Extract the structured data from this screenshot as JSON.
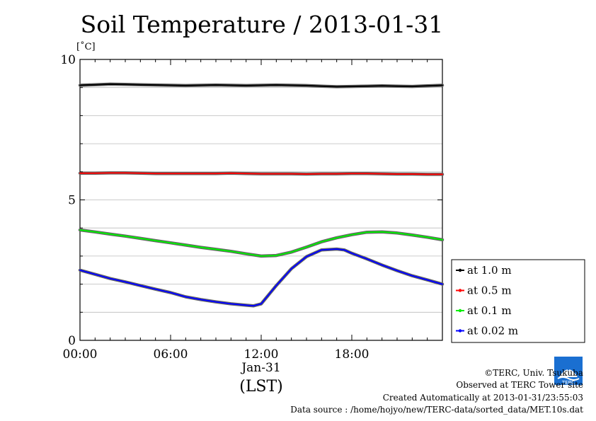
{
  "chart_data": {
    "type": "line",
    "title": "Soil Temperature / 2013-01-31",
    "ylabel": "[˚C]",
    "xlabel": "(LST)",
    "x_date_label": "Jan-31",
    "x_range_hours": [
      0,
      24
    ],
    "x_ticks": [
      {
        "hour": 0,
        "label": "00:00"
      },
      {
        "hour": 6,
        "label": "06:00"
      },
      {
        "hour": 12,
        "label": "12:00"
      },
      {
        "hour": 18,
        "label": "18:00"
      }
    ],
    "ylim": [
      0,
      10
    ],
    "y_ticks": [
      {
        "value": 0,
        "label": "0"
      },
      {
        "value": 5,
        "label": "5"
      },
      {
        "value": 10,
        "label": "10"
      }
    ],
    "grid": true,
    "legend_position": "right",
    "series": [
      {
        "name": "at 1.0 m",
        "color": "#000000",
        "x": [
          0,
          1,
          2,
          3,
          4,
          5,
          6,
          7,
          8,
          9,
          10,
          11,
          12,
          13,
          14,
          15,
          16,
          17,
          18,
          19,
          20,
          21,
          22,
          23,
          24
        ],
        "y": [
          9.08,
          9.1,
          9.12,
          9.11,
          9.1,
          9.09,
          9.08,
          9.07,
          9.08,
          9.09,
          9.08,
          9.07,
          9.08,
          9.09,
          9.08,
          9.07,
          9.05,
          9.03,
          9.04,
          9.05,
          9.06,
          9.05,
          9.04,
          9.06,
          9.08
        ]
      },
      {
        "name": "at 0.5 m",
        "color": "#ff0000",
        "x": [
          0,
          1,
          2,
          3,
          4,
          5,
          6,
          7,
          8,
          9,
          10,
          11,
          12,
          13,
          14,
          15,
          16,
          17,
          18,
          19,
          20,
          21,
          22,
          23,
          24
        ],
        "y": [
          5.95,
          5.95,
          5.96,
          5.96,
          5.95,
          5.94,
          5.94,
          5.94,
          5.94,
          5.94,
          5.95,
          5.94,
          5.93,
          5.93,
          5.93,
          5.92,
          5.93,
          5.93,
          5.94,
          5.94,
          5.93,
          5.92,
          5.92,
          5.91,
          5.91
        ]
      },
      {
        "name": "at 0.1 m",
        "color": "#00ee00",
        "x": [
          0,
          1,
          2,
          3,
          4,
          5,
          6,
          7,
          8,
          9,
          10,
          11,
          12,
          13,
          14,
          15,
          16,
          17,
          18,
          19,
          20,
          21,
          22,
          23,
          24
        ],
        "y": [
          3.93,
          3.86,
          3.78,
          3.71,
          3.63,
          3.55,
          3.47,
          3.39,
          3.31,
          3.24,
          3.17,
          3.08,
          3.0,
          3.02,
          3.14,
          3.32,
          3.51,
          3.65,
          3.76,
          3.85,
          3.86,
          3.82,
          3.75,
          3.67,
          3.58
        ]
      },
      {
        "name": "at 0.02 m",
        "color": "#0000ff",
        "x": [
          0,
          1,
          2,
          3,
          4,
          5,
          6,
          7,
          8,
          9,
          10,
          11,
          11.5,
          12,
          13,
          14,
          15,
          16,
          17,
          17.5,
          18,
          19,
          20,
          21,
          22,
          23,
          24
        ],
        "y": [
          2.5,
          2.35,
          2.2,
          2.08,
          1.95,
          1.82,
          1.7,
          1.55,
          1.45,
          1.37,
          1.3,
          1.25,
          1.23,
          1.3,
          1.95,
          2.55,
          2.98,
          3.22,
          3.25,
          3.22,
          3.1,
          2.9,
          2.68,
          2.48,
          2.3,
          2.15,
          2.0
        ]
      }
    ]
  },
  "footer": {
    "credit": "©TERC, Univ. Tsukuba",
    "observed": "Observed at TERC Tower site",
    "created": "Created Automatically at 2013-01-31/23:55:03",
    "source": "Data source : /home/hojyo/new/TERC-data/sorted_data/MET.10s.dat"
  },
  "logo": {
    "text": "TERC",
    "color": "#1a6fd1"
  }
}
